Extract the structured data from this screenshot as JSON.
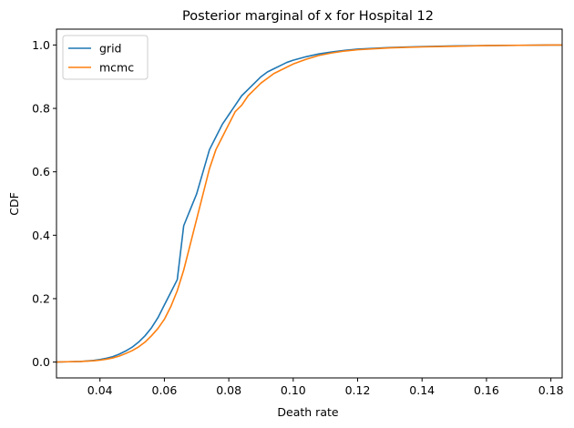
{
  "chart_data": {
    "type": "line",
    "title": "Posterior marginal of x for Hospital 12",
    "xlabel": "Death rate",
    "ylabel": "CDF",
    "xlim": [
      0.0265,
      0.1835
    ],
    "ylim": [
      -0.05,
      1.05
    ],
    "xticks": [
      0.04,
      0.06,
      0.08,
      0.1,
      0.12,
      0.14,
      0.16,
      0.18
    ],
    "xtick_labels": [
      "0.04",
      "0.06",
      "0.08",
      "0.10",
      "0.12",
      "0.14",
      "0.16",
      "0.18"
    ],
    "yticks": [
      0.0,
      0.2,
      0.4,
      0.6,
      0.8,
      1.0
    ],
    "ytick_labels": [
      "0.0",
      "0.2",
      "0.4",
      "0.6",
      "0.8",
      "1.0"
    ],
    "grid": false,
    "legend_position": "top-left",
    "series": [
      {
        "name": "grid",
        "color": "#1f77b4",
        "x": [
          0.0265,
          0.03,
          0.034,
          0.038,
          0.04,
          0.042,
          0.044,
          0.046,
          0.048,
          0.05,
          0.052,
          0.054,
          0.056,
          0.058,
          0.06,
          0.062,
          0.064,
          0.066,
          0.068,
          0.07,
          0.072,
          0.074,
          0.076,
          0.078,
          0.08,
          0.082,
          0.084,
          0.086,
          0.088,
          0.09,
          0.092,
          0.094,
          0.096,
          0.098,
          0.1,
          0.104,
          0.108,
          0.112,
          0.116,
          0.12,
          0.13,
          0.14,
          0.15,
          0.16,
          0.17,
          0.18,
          0.1835
        ],
        "y": [
          0.0,
          0.001,
          0.002,
          0.005,
          0.008,
          0.012,
          0.017,
          0.025,
          0.035,
          0.047,
          0.063,
          0.083,
          0.108,
          0.14,
          0.18,
          0.22,
          0.26,
          0.43,
          0.48,
          0.53,
          0.6,
          0.67,
          0.71,
          0.75,
          0.78,
          0.81,
          0.84,
          0.86,
          0.88,
          0.9,
          0.915,
          0.925,
          0.935,
          0.945,
          0.952,
          0.963,
          0.972,
          0.978,
          0.983,
          0.987,
          0.992,
          0.995,
          0.997,
          0.998,
          0.999,
          1.0,
          1.0
        ]
      },
      {
        "name": "mcmc",
        "color": "#ff7f0e",
        "x": [
          0.0265,
          0.03,
          0.034,
          0.038,
          0.04,
          0.042,
          0.044,
          0.046,
          0.048,
          0.05,
          0.052,
          0.054,
          0.056,
          0.058,
          0.06,
          0.062,
          0.064,
          0.066,
          0.068,
          0.07,
          0.072,
          0.074,
          0.076,
          0.078,
          0.08,
          0.082,
          0.084,
          0.086,
          0.088,
          0.09,
          0.092,
          0.094,
          0.096,
          0.098,
          0.1,
          0.104,
          0.108,
          0.112,
          0.116,
          0.12,
          0.13,
          0.14,
          0.15,
          0.16,
          0.17,
          0.18,
          0.1835
        ],
        "y": [
          0.0,
          0.001,
          0.002,
          0.004,
          0.006,
          0.009,
          0.013,
          0.019,
          0.027,
          0.036,
          0.048,
          0.063,
          0.083,
          0.106,
          0.135,
          0.175,
          0.225,
          0.29,
          0.37,
          0.45,
          0.53,
          0.61,
          0.67,
          0.71,
          0.75,
          0.79,
          0.81,
          0.84,
          0.86,
          0.88,
          0.895,
          0.91,
          0.92,
          0.93,
          0.94,
          0.955,
          0.967,
          0.975,
          0.981,
          0.985,
          0.991,
          0.994,
          0.996,
          0.998,
          0.999,
          1.0,
          1.0
        ]
      }
    ]
  }
}
